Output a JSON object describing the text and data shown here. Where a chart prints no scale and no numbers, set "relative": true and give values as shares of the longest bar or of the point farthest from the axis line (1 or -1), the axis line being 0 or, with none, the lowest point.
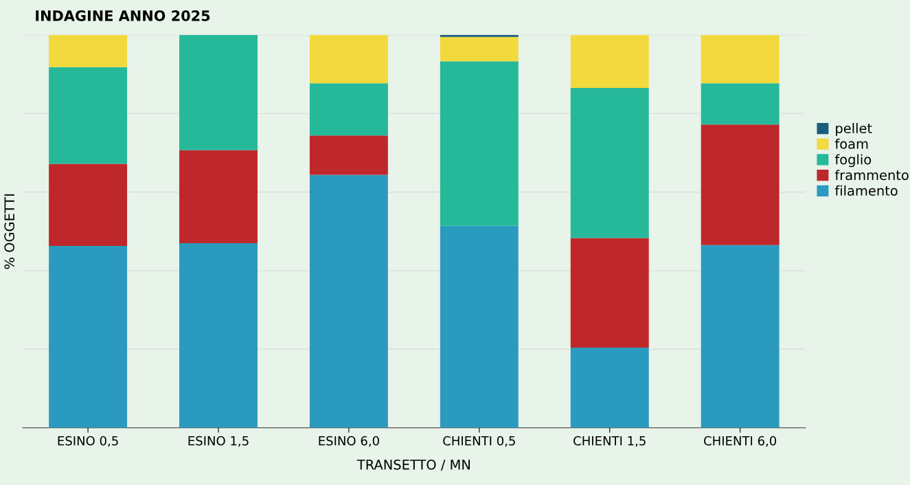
{
  "chart_data": {
    "type": "bar",
    "title": "INDAGINE ANNO 2025",
    "xlabel": "TRANSETTO / MN",
    "ylabel": "% OGGETTI",
    "categories": [
      "ESINO 0,5",
      "ESINO 1,5",
      "ESINO 6,0",
      "CHIENTI 0,5",
      "CHIENTI 1,5",
      "CHIENTI 6,0"
    ],
    "stacked": true,
    "relative": true,
    "grid": "y",
    "legend": "right",
    "series": [
      {
        "name": "filamento",
        "color": "#2b9abf",
        "values": [
          0.463,
          0.47,
          0.644,
          0.514,
          0.204,
          0.465
        ]
      },
      {
        "name": "frammento",
        "color": "#bf282b",
        "values": [
          0.209,
          0.237,
          0.1,
          0,
          0.279,
          0.307
        ]
      },
      {
        "name": "foglio",
        "color": "#25b99a",
        "values": [
          0.246,
          0.293,
          0.133,
          0.419,
          0.382,
          0.105
        ]
      },
      {
        "name": "foam",
        "color": "#f2da3e",
        "values": [
          0.082,
          0,
          0.123,
          0.062,
          0.135,
          0.123
        ]
      },
      {
        "name": "pellet",
        "color": "#1a5e7e",
        "values": [
          0,
          0,
          0,
          0.005,
          0,
          0
        ]
      }
    ]
  }
}
